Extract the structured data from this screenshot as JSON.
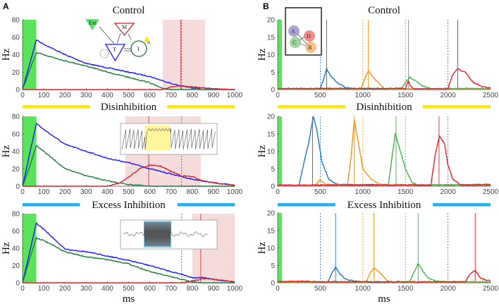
{
  "panel_labels": [
    "A",
    "B"
  ],
  "colors": {
    "blue": "#1a1aff",
    "green": "#1e7b3a",
    "red": "#d4242a",
    "stim": "#5be35b",
    "pink": "#f5dcdc",
    "yellow": "#ffe800",
    "cyan": "#29b2e8",
    "b_blue": "#2173c4",
    "b_orange": "#f7921c",
    "b_green": "#3cb849",
    "b_red": "#ee1c24"
  },
  "diagram_A": {
    "labels": [
      "Ext",
      "M",
      "T",
      "I"
    ]
  },
  "diagram_B": {
    "labels": [
      "A",
      "D",
      "C",
      "B"
    ]
  },
  "chart_data": [
    {
      "id": "A-control",
      "type": "line",
      "title": "Control",
      "ylabel": "Hz",
      "xlabel": "",
      "xlim": [
        0,
        1000
      ],
      "ylim": [
        0,
        80
      ],
      "xticks": [
        0,
        100,
        200,
        300,
        400,
        500,
        600,
        700,
        800,
        900,
        1000
      ],
      "yticks": [
        0,
        20,
        40,
        60,
        80
      ],
      "stimulus": [
        0,
        65
      ],
      "shaded": [
        660,
        860
      ],
      "solid_vline": 745,
      "dashed_vline": 750,
      "series": [
        {
          "color": "blue",
          "x": [
            0,
            65,
            100,
            200,
            300,
            400,
            500,
            600,
            700,
            750,
            800,
            900,
            1000
          ],
          "y": [
            0,
            57,
            52,
            40,
            30,
            25,
            20,
            15,
            7,
            4,
            2,
            1,
            0
          ]
        },
        {
          "color": "green",
          "x": [
            0,
            30,
            65,
            100,
            200,
            300,
            400,
            500,
            600,
            650,
            700,
            1000
          ],
          "y": [
            0,
            20,
            42,
            40,
            33,
            27,
            20,
            14,
            8,
            2,
            0,
            0
          ]
        },
        {
          "color": "red",
          "x": [
            0,
            650,
            700,
            750,
            800,
            900,
            1000
          ],
          "y": [
            0,
            0,
            3,
            4,
            3,
            1,
            0
          ]
        }
      ]
    },
    {
      "id": "A-disinhibition",
      "type": "line",
      "title": "Disinhibition",
      "title_bar_color": "yellow",
      "ylabel": "Hz",
      "xlabel": "",
      "xlim": [
        0,
        1000
      ],
      "ylim": [
        0,
        80
      ],
      "xticks": [
        0,
        100,
        200,
        300,
        400,
        500,
        600,
        700,
        800,
        900,
        1000
      ],
      "yticks": [
        0,
        20,
        40,
        60,
        80
      ],
      "stimulus": [
        0,
        65
      ],
      "shaded": [
        485,
        840
      ],
      "solid_vline": 595,
      "dashed_vline": 750,
      "series": [
        {
          "color": "blue",
          "x": [
            0,
            65,
            100,
            200,
            300,
            400,
            500,
            600,
            700,
            800,
            900,
            1000
          ],
          "y": [
            0,
            72,
            65,
            48,
            40,
            32,
            27,
            20,
            14,
            8,
            4,
            1
          ]
        },
        {
          "color": "green",
          "x": [
            0,
            30,
            65,
            100,
            200,
            300,
            400,
            500,
            600,
            1000
          ],
          "y": [
            0,
            20,
            47,
            40,
            20,
            12,
            6,
            2,
            0,
            0
          ]
        },
        {
          "color": "red",
          "x": [
            0,
            400,
            450,
            500,
            550,
            600,
            650,
            700,
            750,
            800,
            850,
            900,
            1000
          ],
          "y": [
            0,
            0,
            3,
            10,
            20,
            24,
            23,
            17,
            12,
            11,
            6,
            4,
            1
          ]
        }
      ]
    },
    {
      "id": "A-excess-inhibition",
      "type": "line",
      "title": "Excess Inhibition",
      "title_bar_color": "cyan",
      "ylabel": "Hz",
      "xlabel": "ms",
      "xlim": [
        0,
        1000
      ],
      "ylim": [
        0,
        80
      ],
      "xticks": [
        0,
        100,
        200,
        300,
        400,
        500,
        600,
        700,
        800,
        900,
        1000
      ],
      "yticks": [
        0,
        20,
        40,
        60,
        80
      ],
      "stimulus": [
        0,
        65
      ],
      "shaded": [
        800,
        1000
      ],
      "solid_vline": 840,
      "dashed_vline": 750,
      "series": [
        {
          "color": "blue",
          "x": [
            0,
            65,
            100,
            200,
            300,
            400,
            500,
            600,
            700,
            750,
            800,
            850,
            900,
            1000
          ],
          "y": [
            0,
            69,
            62,
            39,
            36,
            31,
            26,
            20,
            13,
            10,
            6,
            6,
            4,
            1
          ]
        },
        {
          "color": "green",
          "x": [
            0,
            30,
            65,
            100,
            200,
            300,
            400,
            500,
            600,
            700,
            800,
            850,
            1000
          ],
          "y": [
            0,
            25,
            52,
            49,
            36,
            30,
            27,
            22,
            13,
            7,
            1,
            0,
            0
          ]
        },
        {
          "color": "red",
          "x": [
            0,
            750,
            800,
            850,
            900,
            1000
          ],
          "y": [
            0,
            0,
            2,
            5,
            4,
            1
          ]
        }
      ]
    },
    {
      "id": "B-control",
      "type": "line",
      "title": "Control",
      "ylabel": "Hz",
      "xlabel": "",
      "xlim": [
        0,
        2500
      ],
      "ylim": [
        0,
        20
      ],
      "xticks": [
        0,
        500,
        1000,
        1500,
        2000,
        2500
      ],
      "yticks": [
        0,
        5,
        10,
        15,
        20
      ],
      "stimulus": [
        0,
        50
      ],
      "dashed_vlines": [
        {
          "x": 500,
          "color": "b_blue"
        },
        {
          "x": 1000,
          "color": "b_orange"
        },
        {
          "x": 1500,
          "color": "b_green"
        },
        {
          "x": 2000,
          "color": "b_red"
        }
      ],
      "solid_vlines": [
        {
          "x": 575,
          "color": "b_blue"
        },
        {
          "x": 1065,
          "color": "b_orange"
        },
        {
          "x": 1535,
          "color": "b_green"
        },
        {
          "x": 2115,
          "color": "b_red"
        }
      ],
      "series": [
        {
          "color": "b_blue",
          "x": [
            0,
            500,
            540,
            575,
            620,
            700,
            800,
            900,
            2500
          ],
          "y": [
            0.2,
            0.2,
            3,
            6,
            4,
            2,
            0.6,
            0.2,
            0.2
          ]
        },
        {
          "color": "b_orange",
          "x": [
            0,
            980,
            1020,
            1065,
            1120,
            1200,
            1260,
            2500
          ],
          "y": [
            0.2,
            0.2,
            3,
            5.5,
            3.5,
            1.5,
            0.2,
            0.2
          ]
        },
        {
          "color": "b_green",
          "x": [
            0,
            1450,
            1500,
            1550,
            1620,
            1700,
            1800,
            2500
          ],
          "y": [
            0.3,
            0.3,
            2,
            3.5,
            2.5,
            1,
            0.3,
            0.3
          ]
        },
        {
          "color": "b_red",
          "x": [
            0,
            1500,
            1535,
            1560,
            1600,
            2000,
            2050,
            2110,
            2200,
            2300,
            2400,
            2500
          ],
          "y": [
            0.3,
            0.3,
            2.5,
            1,
            0.2,
            0.2,
            4,
            6,
            5,
            2,
            0.8,
            0.5
          ]
        }
      ]
    },
    {
      "id": "B-disinhibition",
      "type": "line",
      "title": "Disinhibition",
      "title_bar_color": "yellow",
      "ylabel": "Hz",
      "xlabel": "",
      "xlim": [
        0,
        2500
      ],
      "ylim": [
        0,
        20
      ],
      "xticks": [
        0,
        500,
        1000,
        1500,
        2000,
        2500
      ],
      "yticks": [
        0,
        5,
        10,
        15,
        20
      ],
      "stimulus": [
        0,
        50
      ],
      "dashed_vlines": [
        {
          "x": 500,
          "color": "b_blue"
        },
        {
          "x": 1000,
          "color": "b_orange"
        },
        {
          "x": 1500,
          "color": "b_green"
        },
        {
          "x": 2000,
          "color": "b_red"
        }
      ],
      "solid_vlines": [
        {
          "x": 410,
          "color": "b_blue"
        },
        {
          "x": 900,
          "color": "b_orange"
        },
        {
          "x": 1390,
          "color": "b_green"
        },
        {
          "x": 1895,
          "color": "b_red"
        }
      ],
      "series": [
        {
          "color": "b_blue",
          "x": [
            0,
            250,
            320,
            360,
            420,
            460,
            520,
            600,
            700,
            2500
          ],
          "y": [
            0.2,
            0.2,
            8,
            12,
            20,
            16,
            7,
            2,
            0.5,
            0.2
          ]
        },
        {
          "color": "b_orange",
          "x": [
            0,
            440,
            500,
            560,
            820,
            860,
            900,
            950,
            1000,
            1100,
            1200,
            2500
          ],
          "y": [
            0.2,
            0.2,
            2,
            0.5,
            0.5,
            8,
            19,
            12,
            5,
            2,
            0.5,
            0.3
          ]
        },
        {
          "color": "b_green",
          "x": [
            0,
            1300,
            1340,
            1380,
            1430,
            1500,
            1580,
            1650,
            2500
          ],
          "y": [
            0.3,
            0.3,
            8,
            15,
            11,
            5,
            1,
            0.3,
            0.5
          ]
        },
        {
          "color": "b_red",
          "x": [
            0,
            1800,
            1850,
            1900,
            1960,
            2000,
            2060,
            2150,
            2500
          ],
          "y": [
            0.3,
            0.3,
            9,
            14.5,
            12,
            6,
            2,
            0.3,
            0.5
          ]
        }
      ]
    },
    {
      "id": "B-excess-inhibition",
      "type": "line",
      "title": "Excess Inhibition",
      "title_bar_color": "cyan",
      "ylabel": "Hz",
      "xlabel": "ms",
      "xlim": [
        0,
        2500
      ],
      "ylim": [
        0,
        20
      ],
      "xticks": [
        0,
        500,
        1000,
        1500,
        2000,
        2500
      ],
      "yticks": [
        0,
        5,
        10,
        15,
        20
      ],
      "stimulus": [
        0,
        50
      ],
      "dashed_vlines": [
        {
          "x": 500,
          "color": "b_blue"
        },
        {
          "x": 1000,
          "color": "b_orange"
        },
        {
          "x": 1500,
          "color": "b_green"
        },
        {
          "x": 2000,
          "color": "b_red"
        }
      ],
      "solid_vlines": [
        {
          "x": 680,
          "color": "b_blue"
        },
        {
          "x": 1130,
          "color": "b_orange"
        },
        {
          "x": 1650,
          "color": "b_green"
        },
        {
          "x": 2320,
          "color": "b_red"
        }
      ],
      "series": [
        {
          "color": "b_blue",
          "x": [
            0,
            590,
            640,
            680,
            730,
            800,
            900,
            1000,
            2500
          ],
          "y": [
            0.2,
            0.2,
            3,
            4.5,
            2.5,
            1,
            0.6,
            0.2,
            0.2
          ]
        },
        {
          "color": "b_orange",
          "x": [
            0,
            1040,
            1090,
            1130,
            1200,
            1260,
            1320,
            2500
          ],
          "y": [
            0.2,
            0.2,
            3,
            4.3,
            3,
            1.2,
            0.2,
            0.2
          ]
        },
        {
          "color": "b_green",
          "x": [
            0,
            1550,
            1600,
            1650,
            1700,
            1760,
            1850,
            1950,
            2500
          ],
          "y": [
            0.3,
            0.3,
            3,
            5.5,
            3.5,
            1.5,
            0.5,
            0.3,
            0.3
          ]
        },
        {
          "color": "b_red",
          "x": [
            0,
            350,
            400,
            2200,
            2260,
            2320,
            2380,
            2440,
            2500
          ],
          "y": [
            0.3,
            0.5,
            0.3,
            0.3,
            2.5,
            3.5,
            1.5,
            0.8,
            0.6
          ]
        }
      ]
    }
  ]
}
